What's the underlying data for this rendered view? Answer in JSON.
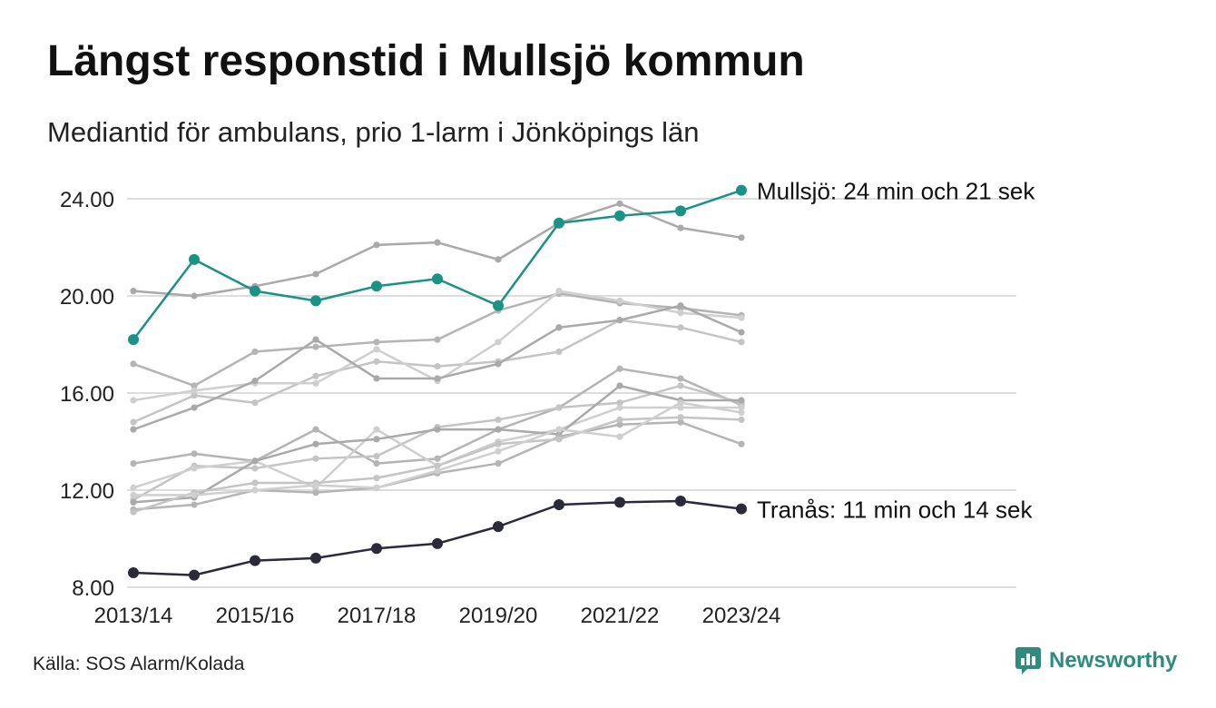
{
  "header": {
    "title": "Längst responstid i Mullsjö kommun",
    "subtitle": "Mediantid för ambulans, prio 1-larm i Jönköpings län"
  },
  "footer": {
    "source": "Källa: SOS Alarm/Kolada",
    "brand": "Newsworthy"
  },
  "colors": {
    "highlight": "#1a9284",
    "low": "#2b2a3a",
    "other": [
      "#a9a9a9",
      "#b4b4b4",
      "#c4c4c4",
      "#cfcfcf"
    ],
    "grid": "#dddddd"
  },
  "chart_data": {
    "type": "line",
    "x": [
      "2013/14",
      "2014/15",
      "2015/16",
      "2016/17",
      "2017/18",
      "2018/19",
      "2019/20",
      "2020/21",
      "2021/22",
      "2022/23",
      "2023/24"
    ],
    "xticks": [
      "2013/14",
      "2015/16",
      "2017/18",
      "2019/20",
      "2021/22",
      "2023/24"
    ],
    "yticks": [
      "8.00",
      "12.00",
      "16.00",
      "20.00",
      "24.00"
    ],
    "ylim": [
      8,
      24.6
    ],
    "grid": true,
    "highlight": {
      "label": "Mullsjö: 24 min och 21 sek",
      "values": [
        18.2,
        21.5,
        20.2,
        19.8,
        20.4,
        20.7,
        19.6,
        23.0,
        23.3,
        23.5,
        24.35
      ]
    },
    "low": {
      "label": "Tranås: 11 min och 14 sek",
      "values": [
        8.6,
        8.5,
        9.1,
        9.2,
        9.6,
        9.8,
        10.5,
        11.4,
        11.5,
        11.55,
        11.23
      ]
    },
    "others": [
      {
        "values": [
          20.2,
          20.0,
          20.4,
          20.9,
          22.1,
          22.2,
          21.5,
          23.0,
          23.8,
          22.8,
          22.4
        ]
      },
      {
        "values": [
          17.2,
          16.3,
          17.7,
          17.9,
          18.1,
          18.2,
          19.4,
          20.1,
          19.7,
          19.5,
          19.2
        ]
      },
      {
        "values": [
          14.8,
          15.9,
          15.6,
          16.7,
          17.3,
          17.1,
          17.3,
          17.7,
          19.0,
          18.7,
          18.1
        ]
      },
      {
        "values": [
          15.7,
          16.1,
          16.4,
          16.4,
          17.8,
          16.5,
          18.1,
          20.2,
          19.8,
          19.3,
          19.1
        ]
      },
      {
        "values": [
          14.5,
          15.4,
          16.5,
          18.2,
          16.6,
          16.6,
          17.2,
          18.7,
          19.0,
          19.6,
          18.5
        ]
      },
      {
        "values": [
          13.1,
          13.5,
          13.2,
          14.5,
          13.1,
          13.3,
          14.5,
          15.4,
          17.0,
          16.6,
          15.5
        ]
      },
      {
        "values": [
          11.6,
          13.0,
          12.9,
          13.3,
          13.4,
          14.6,
          14.9,
          15.4,
          15.6,
          16.3,
          15.6
        ]
      },
      {
        "values": [
          12.1,
          12.9,
          13.2,
          12.1,
          14.5,
          13.0,
          14.0,
          14.5,
          15.4,
          15.4,
          15.4
        ]
      },
      {
        "values": [
          11.5,
          11.7,
          13.2,
          13.9,
          14.1,
          14.5,
          14.5,
          14.3,
          16.3,
          15.7,
          15.7
        ]
      },
      {
        "values": [
          11.2,
          11.4,
          12.0,
          11.9,
          12.1,
          12.7,
          13.1,
          14.2,
          14.7,
          14.8,
          13.9
        ]
      },
      {
        "values": [
          11.1,
          11.9,
          12.3,
          12.3,
          12.5,
          13.0,
          13.9,
          14.1,
          14.9,
          15.0,
          14.9
        ]
      },
      {
        "values": [
          11.8,
          11.8,
          12.0,
          12.2,
          12.1,
          12.8,
          13.6,
          14.5,
          14.2,
          15.6,
          15.2
        ]
      }
    ]
  }
}
